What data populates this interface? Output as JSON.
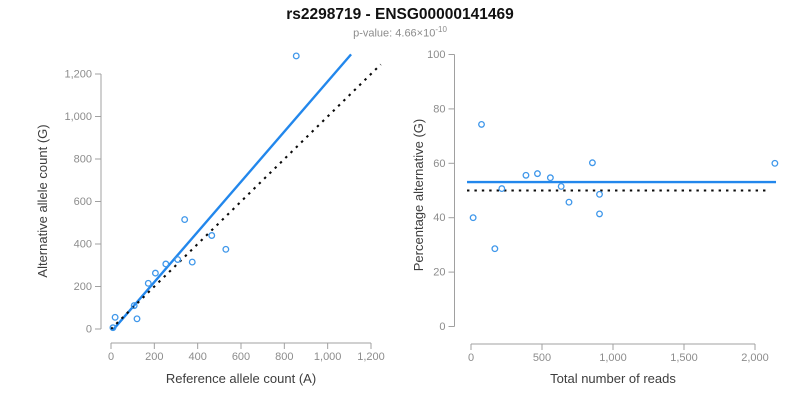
{
  "header": {
    "title": "rs2298719 - ENSG00000141469",
    "subtitle_prefix": "p-value: 4.66×10",
    "subtitle_exponent": "-10"
  },
  "colors": {
    "line_blue": "#2287ec",
    "point_blue": "#3f97ea",
    "dotted_black": "#0a0a0a",
    "axis_gray": "#a0a0a0",
    "tick_label_gray": "#8c8c8c",
    "axis_title_dark": "#3d3d3d"
  },
  "chart_data": [
    {
      "type": "scatter",
      "name": "allele-counts",
      "xlabel": "Reference allele count (A)",
      "ylabel": "Alternative allele count (G)",
      "xlim": [
        0,
        1200
      ],
      "ylim": [
        0,
        1200
      ],
      "grid": false,
      "xticks": {
        "values": [
          0,
          200,
          400,
          600,
          800,
          1000,
          1200
        ],
        "labels": [
          "0",
          "200",
          "400",
          "600",
          "800",
          "1,000",
          "1,200"
        ]
      },
      "yticks": {
        "values": [
          0,
          200,
          400,
          600,
          800,
          1000,
          1200
        ],
        "labels": [
          "0",
          "200",
          "400",
          "600",
          "800",
          "1,000",
          "1,200"
        ]
      },
      "points": [
        [
          9,
          6
        ],
        [
          19,
          55
        ],
        [
          107,
          110
        ],
        [
          120,
          48
        ],
        [
          172,
          215
        ],
        [
          205,
          263
        ],
        [
          253,
          306
        ],
        [
          308,
          327
        ],
        [
          340,
          515
        ],
        [
          375,
          315
        ],
        [
          465,
          440
        ],
        [
          530,
          375
        ],
        [
          855,
          1285
        ]
      ],
      "lines": [
        {
          "name": "fit-line",
          "kind": "linear",
          "slope": 1.18,
          "intercept": -15,
          "x_range": [
            8,
            1108
          ],
          "style": "solid",
          "color_key": "line_blue"
        },
        {
          "name": "identity-line",
          "kind": "linear",
          "slope": 1,
          "intercept": 0,
          "x_range": [
            0,
            1245
          ],
          "style": "dotted",
          "color_key": "dotted_black"
        }
      ]
    },
    {
      "type": "scatter",
      "name": "percentage-vs-reads",
      "xlabel": "Total number of reads",
      "ylabel": "Percentage alternative (G)",
      "xlim": [
        0,
        2000
      ],
      "ylim": [
        0,
        100
      ],
      "grid": false,
      "xticks": {
        "values": [
          0,
          500,
          1000,
          1500,
          2000
        ],
        "labels": [
          "0",
          "500",
          "1,000",
          "1,500",
          "2,000"
        ]
      },
      "yticks": {
        "values": [
          0,
          20,
          40,
          60,
          80,
          100
        ],
        "labels": [
          "0",
          "20",
          "40",
          "60",
          "80",
          "100"
        ]
      },
      "points": [
        [
          15,
          40
        ],
        [
          74,
          74.3
        ],
        [
          168,
          28.6
        ],
        [
          217,
          50.7
        ],
        [
          387,
          55.6
        ],
        [
          468,
          56.2
        ],
        [
          559,
          54.7
        ],
        [
          635,
          51.5
        ],
        [
          690,
          45.7
        ],
        [
          855,
          60.2
        ],
        [
          905,
          48.6
        ],
        [
          905,
          41.4
        ],
        [
          2140,
          60
        ]
      ],
      "lines": [
        {
          "name": "mean-line",
          "kind": "horizontal",
          "y": 53.1,
          "x_range": [
            -28,
            2148
          ],
          "style": "solid",
          "color_key": "line_blue"
        },
        {
          "name": "reference-line",
          "kind": "horizontal",
          "y": 50,
          "x_range": [
            -28,
            2090
          ],
          "style": "dotted",
          "color_key": "dotted_black"
        }
      ]
    }
  ]
}
